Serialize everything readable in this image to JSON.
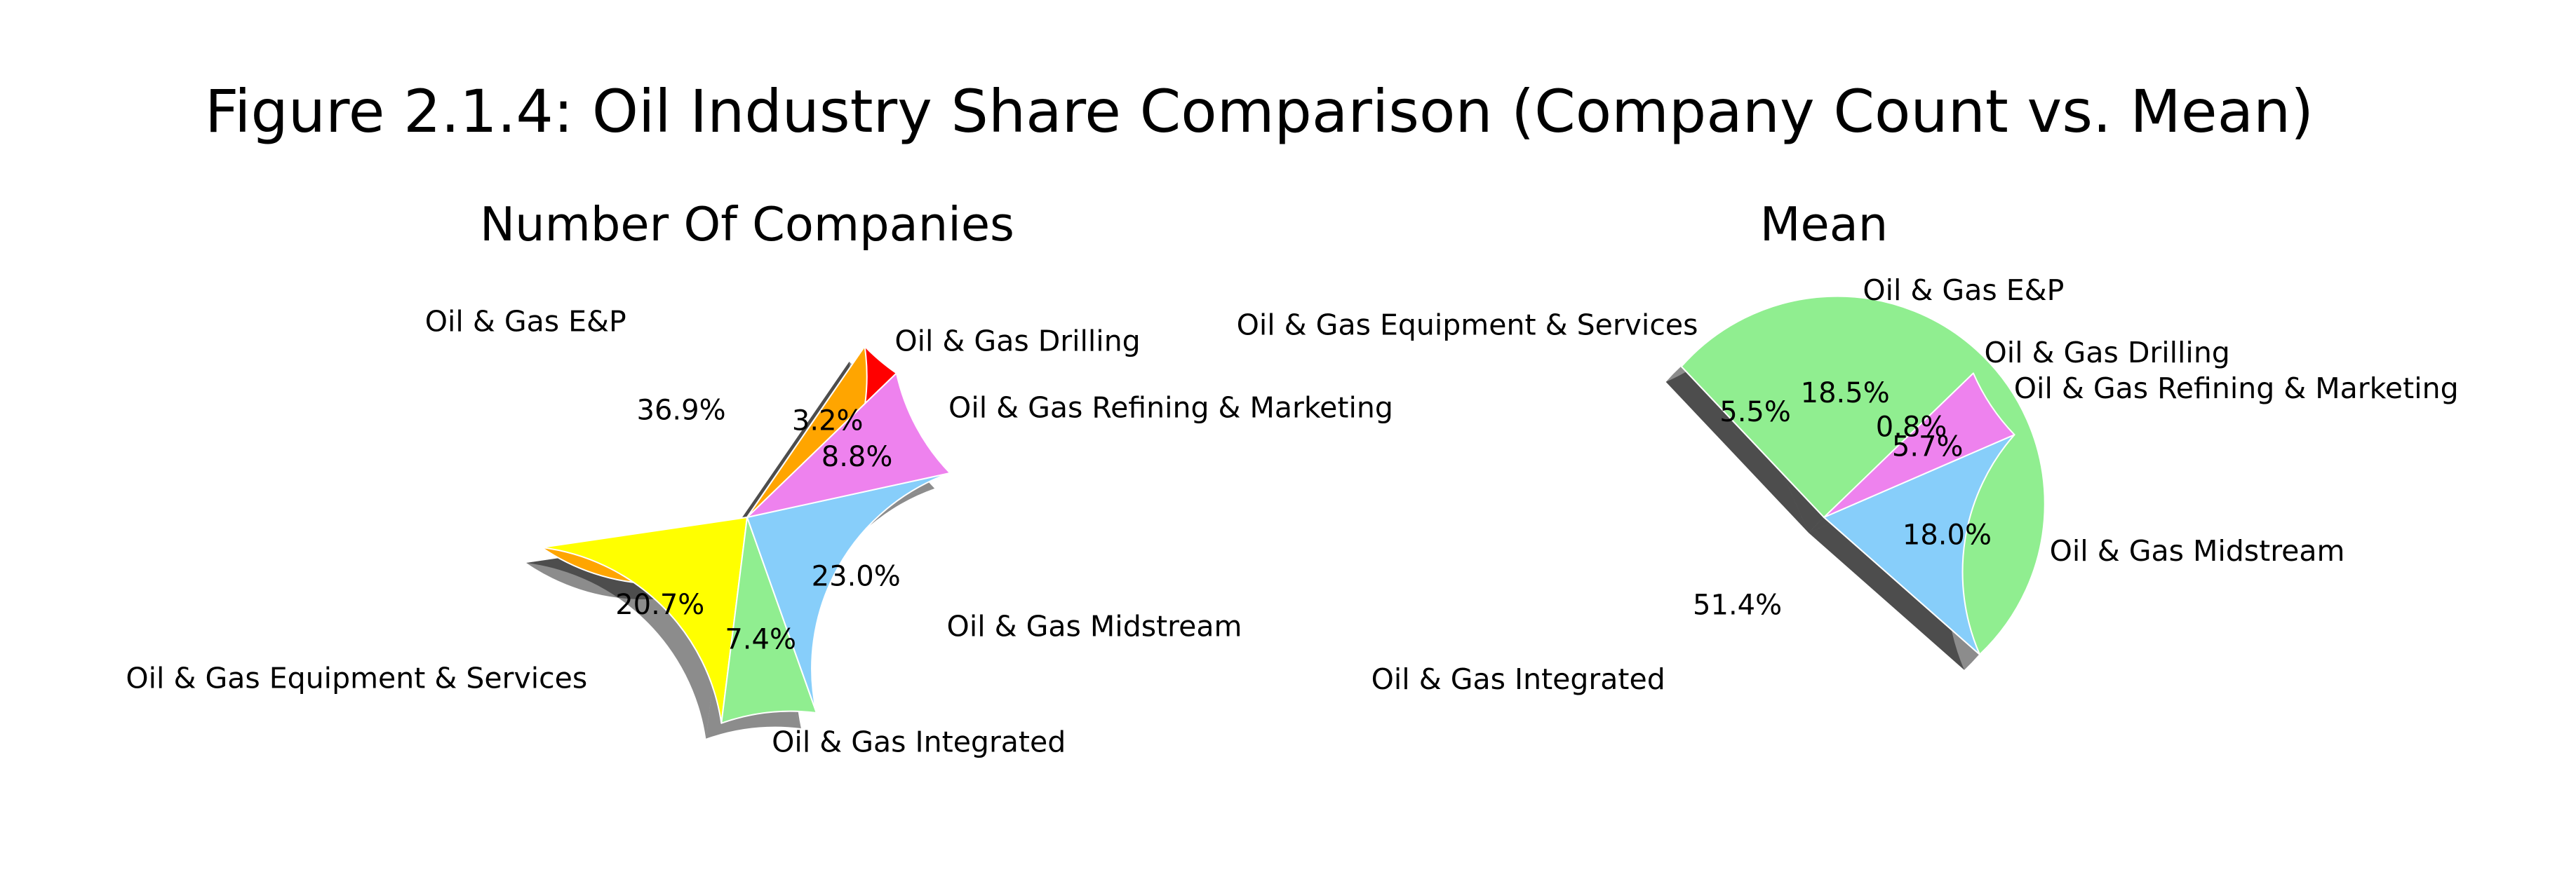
{
  "figure": {
    "title": "Figure 2.1.4: Oil Industry Share Comparison (Company Count vs. Mean)"
  },
  "chart_data": [
    {
      "type": "pie",
      "title": "Number Of Companies",
      "start_angle_deg": 44,
      "shadow": true,
      "categories": [
        "Oil & Gas Drilling",
        "Oil & Gas E&P",
        "Oil & Gas Equipment & Services",
        "Oil & Gas Integrated",
        "Oil & Gas Midstream",
        "Oil & Gas Refining & Marketing"
      ],
      "values": [
        3.2,
        36.9,
        20.7,
        7.4,
        23.0,
        8.8
      ],
      "value_labels": [
        "3.2%",
        "36.9%",
        "20.7%",
        "7.4%",
        "23.0%",
        "8.8%"
      ],
      "colors": [
        "#ff0000",
        "#ffa500",
        "#ffff00",
        "#90ee90",
        "#87cefa",
        "#ee82ee"
      ]
    },
    {
      "type": "pie",
      "title": "Mean",
      "start_angle_deg": 44,
      "shadow": true,
      "categories": [
        "Oil & Gas Drilling",
        "Oil & Gas E&P",
        "Oil & Gas Equipment & Services",
        "Oil & Gas Integrated",
        "Oil & Gas Midstream",
        "Oil & Gas Refining & Marketing"
      ],
      "values": [
        0.8,
        18.5,
        5.5,
        51.4,
        18.0,
        5.7
      ],
      "value_labels": [
        "0.8%",
        "18.5%",
        "5.5%",
        "51.4%",
        "18.0%",
        "5.7%"
      ],
      "colors": [
        "#ff0000",
        "#ffa500",
        "#ffff00",
        "#90ee90",
        "#87cefa",
        "#ee82ee"
      ]
    }
  ]
}
